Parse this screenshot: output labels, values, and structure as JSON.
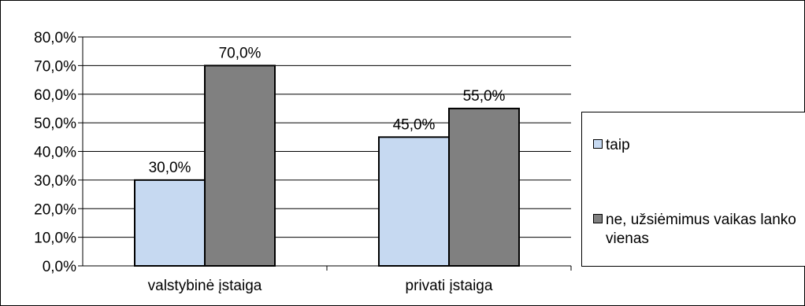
{
  "chart_data": {
    "type": "bar",
    "categories": [
      "valstybinė įstaiga",
      "privati įstaiga"
    ],
    "series": [
      {
        "name": "taip",
        "values": [
          30.0,
          45.0
        ],
        "color": "#c6d9f1"
      },
      {
        "name": "ne, užsiėmimus vaikas lanko vienas",
        "values": [
          70.0,
          55.0
        ],
        "color": "#808080"
      }
    ],
    "data_labels": [
      [
        "30,0%",
        "45,0%"
      ],
      [
        "70,0%",
        "55,0%"
      ]
    ],
    "y_ticks": [
      "0,0%",
      "10,0%",
      "20,0%",
      "30,0%",
      "40,0%",
      "50,0%",
      "60,0%",
      "70,0%",
      "80,0%"
    ],
    "ylim": [
      0,
      80
    ],
    "grid": true,
    "legend_position": "right"
  }
}
